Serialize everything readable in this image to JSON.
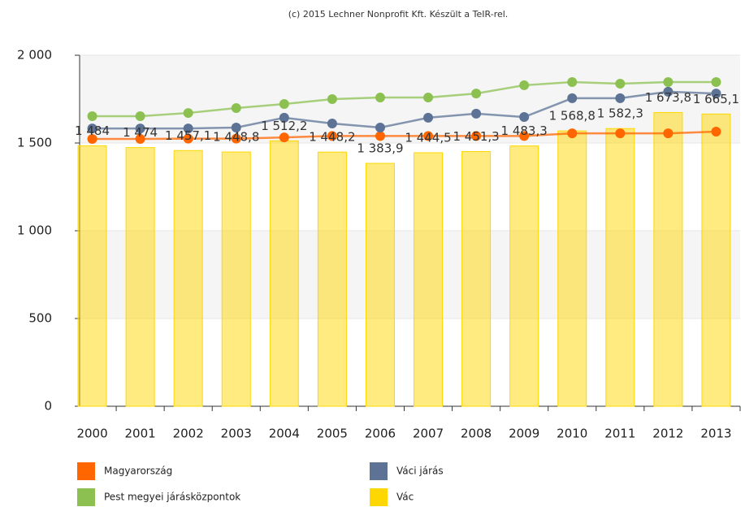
{
  "chart_data": {
    "type": "bar",
    "credit": "(c) 2015 Lechner Nonprofit Kft. Készült a TeIR-rel.",
    "categories": [
      "2000",
      "2001",
      "2002",
      "2003",
      "2004",
      "2005",
      "2006",
      "2007",
      "2008",
      "2009",
      "2010",
      "2011",
      "2012",
      "2013"
    ],
    "series": [
      {
        "name": "Magyarország",
        "type": "line",
        "color": "#ff6600",
        "values": [
          1523,
          1523,
          1525,
          1525,
          1532,
          1540,
          1540,
          1540,
          1540,
          1540,
          1555,
          1555,
          1555,
          1565
        ]
      },
      {
        "name": "Váci járás",
        "type": "line",
        "color": "#5c7396",
        "values": [
          1583,
          1583,
          1583,
          1588,
          1644,
          1611,
          1588,
          1644,
          1667,
          1648,
          1755,
          1755,
          1792,
          1782
        ]
      },
      {
        "name": "Pest megyei járásközpontok",
        "type": "line",
        "color": "#8cc152",
        "values": [
          1653,
          1653,
          1671,
          1699,
          1722,
          1750,
          1759,
          1759,
          1782,
          1829,
          1847,
          1838,
          1847,
          1847
        ]
      },
      {
        "name": "Vác",
        "type": "bar",
        "color": "#ffd700",
        "values": [
          1484,
          1474,
          1457.1,
          1448.8,
          1512.2,
          1448.2,
          1383.9,
          1444.5,
          1451.3,
          1483.3,
          1568.8,
          1582.3,
          1673.8,
          1665.1
        ],
        "value_labels": [
          "1 484",
          "1 474",
          "1 457,1",
          "1 448,8",
          "1 512,2",
          "1 448,2",
          "1 383,9",
          "1 444,5",
          "1 451,3",
          "1 483,3",
          "1 568,8",
          "1 582,3",
          "1 673,8",
          "1 665,1"
        ]
      }
    ],
    "ylim": [
      0,
      2000
    ],
    "yticks": [
      0,
      500,
      {
        "value": 1000,
        "label": "1 000"
      },
      {
        "value": 1500,
        "label": "1 500"
      },
      {
        "value": 2000,
        "label": "2 000"
      }
    ],
    "grid": true,
    "legend": "bottom"
  }
}
